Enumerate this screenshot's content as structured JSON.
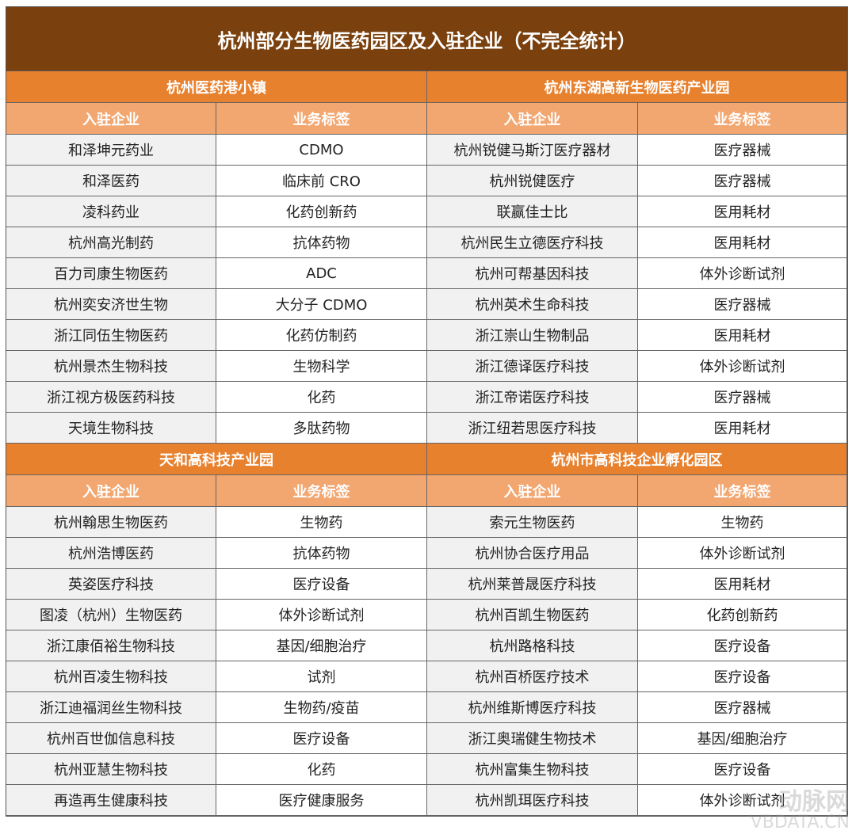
{
  "title": "杭州部分生物医药园区及入驻企业（不完全统计）",
  "col_headers": [
    "入驻企业",
    "业务标签"
  ],
  "sections": [
    {
      "parks": [
        {
          "name": "杭州医药港小镇",
          "rows": [
            [
              "和泽坤元药业",
              "CDMO"
            ],
            [
              "和泽医药",
              "临床前 CRO"
            ],
            [
              "凌科药业",
              "化药创新药"
            ],
            [
              "杭州高光制药",
              "抗体药物"
            ],
            [
              "百力司康生物医药",
              "ADC"
            ],
            [
              "杭州奕安济世生物",
              "大分子 CDMO"
            ],
            [
              "浙江同伍生物医药",
              "化药仿制药"
            ],
            [
              "杭州景杰生物科技",
              "生物科学"
            ],
            [
              "浙江视方极医药科技",
              "化药"
            ],
            [
              "天境生物科技",
              "多肽药物"
            ]
          ]
        },
        {
          "name": "杭州东湖高新生物医药产业园",
          "rows": [
            [
              "杭州锐健马斯汀医疗器材",
              "医疗器械"
            ],
            [
              "杭州锐健医疗",
              "医疗器械"
            ],
            [
              "联赢佳士比",
              "医用耗材"
            ],
            [
              "杭州民生立德医疗科技",
              "医用耗材"
            ],
            [
              "杭州可帮基因科技",
              "体外诊断试剂"
            ],
            [
              "杭州英术生命科技",
              "医疗器械"
            ],
            [
              "浙江崇山生物制品",
              "医用耗材"
            ],
            [
              "浙江德译医疗科技",
              "体外诊断试剂"
            ],
            [
              "浙江帝诺医疗科技",
              "医疗器械"
            ],
            [
              "浙江纽若思医疗科技",
              "医用耗材"
            ]
          ]
        }
      ]
    },
    {
      "parks": [
        {
          "name": "天和高科技产业园",
          "rows": [
            [
              "杭州翰思生物医药",
              "生物药"
            ],
            [
              "杭州浩博医药",
              "抗体药物"
            ],
            [
              "英姿医疗科技",
              "医疗设备"
            ],
            [
              "图凌（杭州）生物医药",
              "体外诊断试剂"
            ],
            [
              "浙江康佰裕生物科技",
              "基因/细胞治疗"
            ],
            [
              "杭州百凌生物科技",
              "试剂"
            ],
            [
              "浙江迪福润丝生物科技",
              "生物药/疫苗"
            ],
            [
              "杭州百世伽信息科技",
              "医疗设备"
            ],
            [
              "杭州亚慧生物科技",
              "化药"
            ],
            [
              "再造再生健康科技",
              "医疗健康服务"
            ]
          ]
        },
        {
          "name": "杭州市高科技企业孵化园区",
          "rows": [
            [
              "索元生物医药",
              "生物药"
            ],
            [
              "杭州协合医疗用品",
              "体外诊断试剂"
            ],
            [
              "杭州莱普晟医疗科技",
              "医用耗材"
            ],
            [
              "杭州百凯生物医药",
              "化药创新药"
            ],
            [
              "杭州路格科技",
              "医疗设备"
            ],
            [
              "杭州百桥医疗技术",
              "医疗设备"
            ],
            [
              "杭州维斯博医疗科技",
              "医疗器械"
            ],
            [
              "浙江奥瑞健生物技术",
              "基因/细胞治疗"
            ],
            [
              "杭州富集生物科技",
              "医疗设备"
            ],
            [
              "杭州凯珥医疗科技",
              "体外诊断试剂"
            ]
          ]
        }
      ]
    }
  ],
  "watermark": {
    "text": "动脉网",
    "sub": "VBDATA.CN"
  }
}
